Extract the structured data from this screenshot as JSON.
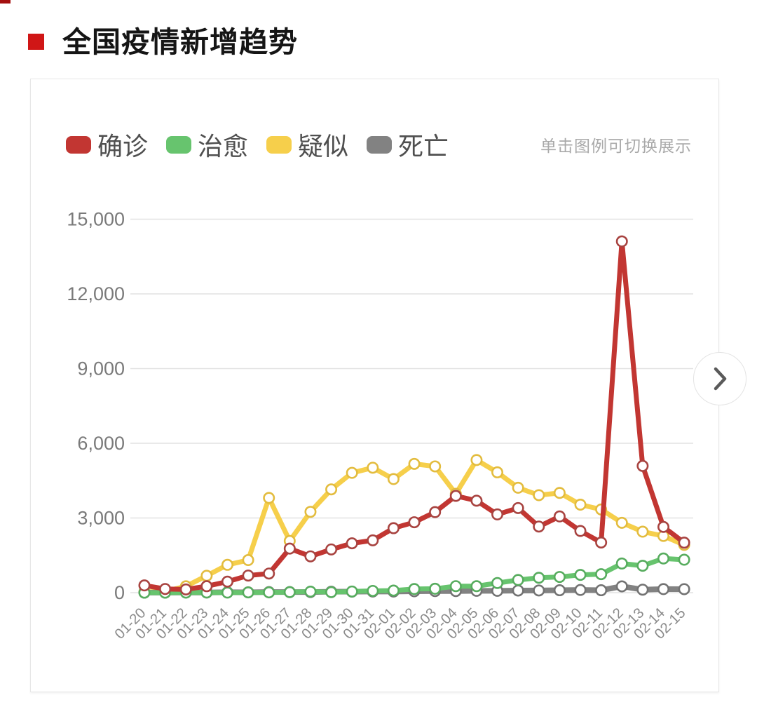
{
  "page": {
    "title": "全国疫情新增趋势"
  },
  "chart": {
    "hint": "单击图例可切换展示"
  },
  "next_button": {
    "glyph": "chevron-right"
  },
  "colors": {
    "title_bullet": "#d01616",
    "grid_line": "#e2e2e2",
    "axis_label": "#7a7a7a",
    "x_label": "#8b8b8b",
    "card_border": "#e7e7e7"
  },
  "chart_data": {
    "type": "line",
    "title": "全国疫情新增趋势",
    "xlabel": "",
    "ylabel": "",
    "ylim": [
      0,
      15000
    ],
    "yticks": [
      0,
      3000,
      6000,
      9000,
      12000,
      15000
    ],
    "grid": true,
    "legend_position": "top-left",
    "point_style": "white-filled-circles",
    "x": [
      "01-20",
      "01-21",
      "01-22",
      "01-23",
      "01-24",
      "01-25",
      "01-26",
      "01-27",
      "01-28",
      "01-29",
      "01-30",
      "01-31",
      "02-01",
      "02-02",
      "02-03",
      "02-04",
      "02-05",
      "02-06",
      "02-07",
      "02-08",
      "02-09",
      "02-10",
      "02-11",
      "02-12",
      "02-13",
      "02-14",
      "02-15"
    ],
    "series": [
      {
        "name": "确诊",
        "color": "#c23632",
        "dot_stroke": "#a84340",
        "values": [
          291,
          149,
          131,
          259,
          444,
          688,
          769,
          1771,
          1459,
          1737,
          1982,
          2102,
          2590,
          2829,
          3235,
          3887,
          3694,
          3143,
          3399,
          2656,
          3062,
          2478,
          2015,
          14108,
          5090,
          2641,
          2009
        ]
      },
      {
        "name": "治愈",
        "color": "#67c46e",
        "dot_stroke": "#57ac5e",
        "values": [
          0,
          0,
          3,
          6,
          3,
          11,
          12,
          21,
          43,
          21,
          47,
          72,
          85,
          147,
          157,
          262,
          261,
          387,
          510,
          599,
          632,
          715,
          744,
          1171,
          1081,
          1373,
          1323
        ]
      },
      {
        "name": "疑似",
        "color": "#f6cf4b",
        "dot_stroke": "#e3bc3e",
        "values": [
          27,
          53,
          257,
          680,
          1118,
          1309,
          3806,
          2077,
          3248,
          4148,
          4812,
          5019,
          4562,
          5173,
          5072,
          3971,
          5328,
          4833,
          4214,
          3916,
          4008,
          3536,
          3342,
          2807,
          2450,
          2277,
          1918
        ]
      },
      {
        "name": "死亡",
        "color": "#828282",
        "dot_stroke": "#737373",
        "values": [
          2,
          3,
          8,
          8,
          16,
          15,
          24,
          26,
          26,
          38,
          43,
          46,
          45,
          57,
          64,
          65,
          73,
          73,
          86,
          89,
          97,
          108,
          97,
          254,
          121,
          143,
          142
        ]
      }
    ]
  }
}
